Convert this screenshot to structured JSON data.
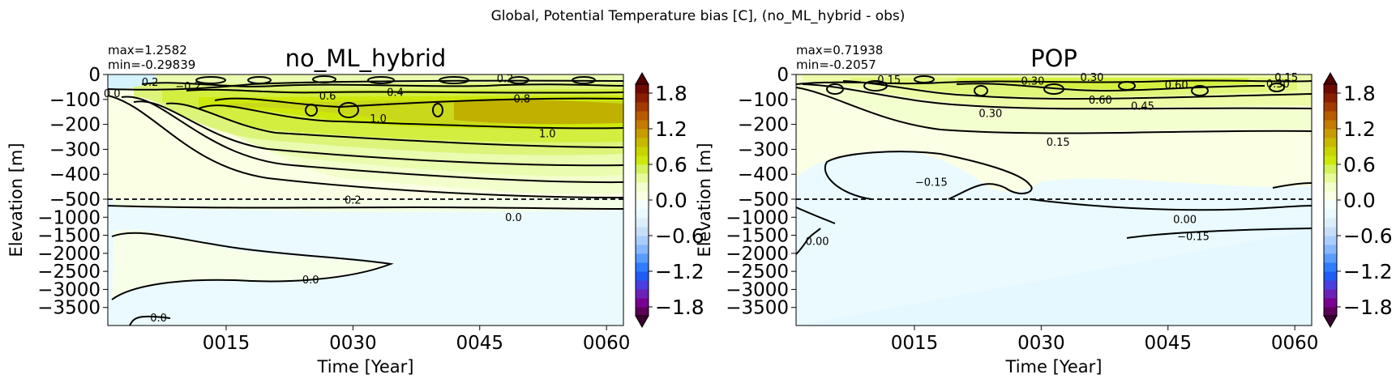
{
  "suptitle": "Global, Potential Temperature bias [C], (no_ML_hybrid - obs)",
  "colorbar": {
    "levels": [
      -2.1,
      -1.95,
      -1.8,
      -1.65,
      -1.5,
      -1.35,
      -1.2,
      -1.05,
      -0.9,
      -0.75,
      -0.6,
      -0.45,
      -0.3,
      -0.15,
      0.0,
      0.15,
      0.3,
      0.45,
      0.6,
      0.75,
      0.9,
      1.05,
      1.2,
      1.35,
      1.5,
      1.65,
      1.8,
      1.95,
      2.1
    ],
    "colors": [
      "#3b0030",
      "#5c0058",
      "#7a0090",
      "#6a22b8",
      "#4a3ee0",
      "#1f5bf5",
      "#2f7cff",
      "#5a9bff",
      "#86b7ff",
      "#aacdff",
      "#c8def7",
      "#dbeefa",
      "#eafaff",
      "#f4fffc",
      "#fbffe4",
      "#f2ffcc",
      "#e6fa9a",
      "#d4f25e",
      "#cde80a",
      "#c8d400",
      "#c8b800",
      "#c89c00",
      "#c47b00",
      "#b85a00",
      "#a33a00",
      "#8a1e00",
      "#6e0a00",
      "#520000"
    ],
    "tick_labels": [
      "−1.8",
      "−1.2",
      "−0.6",
      "0.0",
      "0.6",
      "1.2",
      "1.8"
    ],
    "tick_values": [
      -1.8,
      -1.2,
      -0.6,
      0.0,
      0.6,
      1.2,
      1.8
    ]
  },
  "chart_data": [
    {
      "type": "heatmap",
      "title": "no_ML_hybrid",
      "max_label": "max=1.2582",
      "min_label": "min=-0.29839",
      "xlabel": "Time [Year]",
      "ylabel": "Elevation [m]",
      "x_ticks": [
        "0015",
        "0030",
        "0045",
        "0060"
      ],
      "y_ticks_upper": [
        "0",
        "−100",
        "−200",
        "−300",
        "−400",
        "−500"
      ],
      "y_ticks_lower": [
        "−1000",
        "−1500",
        "−2000",
        "−2500",
        "−3000",
        "−3500"
      ],
      "xlim": [
        1,
        62
      ],
      "ylim_upper": [
        -500,
        0
      ],
      "ylim_lower": [
        -4000,
        -500
      ],
      "contour_labels": [
        {
          "text": "0.2",
          "x": 6,
          "y": -30
        },
        {
          "text": "−0.2",
          "x": 10.5,
          "y": -45
        },
        {
          "text": "0.0",
          "x": 1.5,
          "y": -75
        },
        {
          "text": "0.6",
          "x": 27,
          "y": -85
        },
        {
          "text": "0.4",
          "x": 35,
          "y": -70
        },
        {
          "text": "0.2",
          "x": 48,
          "y": -15
        },
        {
          "text": "0.8",
          "x": 50,
          "y": -95
        },
        {
          "text": "1.0",
          "x": 33,
          "y": -175
        },
        {
          "text": "1.0",
          "x": 53,
          "y": -235
        },
        {
          "text": "0.2",
          "x": 30,
          "y": -510
        },
        {
          "text": "0.0",
          "x": 49,
          "y": -990
        },
        {
          "text": "0.0",
          "x": 25,
          "y": -2720
        },
        {
          "text": "0.0",
          "x": 7,
          "y": -3780
        }
      ]
    },
    {
      "type": "heatmap",
      "title": "POP",
      "max_label": "max=0.71938",
      "min_label": "min=-0.2057",
      "xlabel": "Time [Year]",
      "ylabel": "Elevation [m]",
      "x_ticks": [
        "0015",
        "0030",
        "0045",
        "0060"
      ],
      "y_ticks_upper": [
        "0",
        "−100",
        "−200",
        "−300",
        "−400",
        "−500"
      ],
      "y_ticks_lower": [
        "−1000",
        "−1500",
        "−2000",
        "−2500",
        "−3000",
        "−3500"
      ],
      "xlim": [
        1,
        62
      ],
      "ylim_upper": [
        -500,
        0
      ],
      "ylim_lower": [
        -4000,
        -500
      ],
      "contour_labels": [
        {
          "text": "0.15",
          "x": 12,
          "y": -20
        },
        {
          "text": "0.30",
          "x": 29,
          "y": -25
        },
        {
          "text": "0.30",
          "x": 36,
          "y": -10
        },
        {
          "text": "0.60",
          "x": 46,
          "y": -40
        },
        {
          "text": "0.15",
          "x": 59,
          "y": -10
        },
        {
          "text": "0.30",
          "x": 58,
          "y": -35
        },
        {
          "text": "0.60",
          "x": 37,
          "y": -100
        },
        {
          "text": "0.45",
          "x": 42,
          "y": -125
        },
        {
          "text": "0.30",
          "x": 24,
          "y": -155
        },
        {
          "text": "0.15",
          "x": 32,
          "y": -270
        },
        {
          "text": "−0.15",
          "x": 17,
          "y": -430
        },
        {
          "text": "0.00",
          "x": 47,
          "y": -1050
        },
        {
          "text": "−0.15",
          "x": 48,
          "y": -1520
        },
        {
          "text": "0.00",
          "x": 3.5,
          "y": -1650
        }
      ]
    }
  ]
}
